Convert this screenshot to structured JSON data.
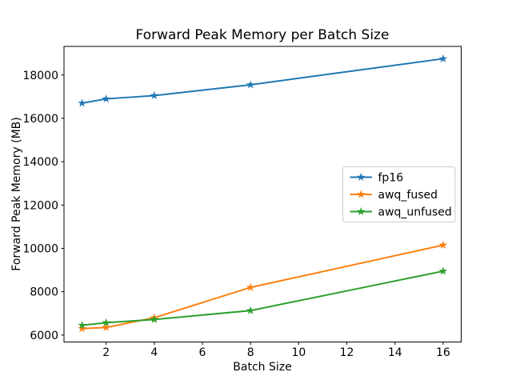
{
  "chart_data": {
    "type": "line",
    "title": "Forward Peak Memory per Batch Size",
    "xlabel": "Batch Size",
    "ylabel": "Forward Peak Memory (MB)",
    "x": [
      1,
      2,
      4,
      8,
      16
    ],
    "series": [
      {
        "name": "fp16",
        "color": "#1f77b4",
        "marker": "star",
        "values": [
          16700,
          16900,
          17050,
          17550,
          18750
        ]
      },
      {
        "name": "awq_fused",
        "color": "#ff7f0e",
        "marker": "star",
        "values": [
          6300,
          6350,
          6800,
          8200,
          10150
        ]
      },
      {
        "name": "awq_unfused",
        "color": "#2ca02c",
        "marker": "star",
        "values": [
          6450,
          6570,
          6720,
          7130,
          8950
        ]
      }
    ],
    "xlim": [
      0.25,
      16.75
    ],
    "ylim": [
      5680,
      19320
    ],
    "xticks": [
      2,
      4,
      6,
      8,
      10,
      12,
      14,
      16
    ],
    "yticks": [
      6000,
      8000,
      10000,
      12000,
      14000,
      16000,
      18000
    ],
    "grid": false,
    "legend": {
      "position": "center-right",
      "entries": [
        "fp16",
        "awq_fused",
        "awq_unfused"
      ],
      "background": "#ffffff",
      "border_color": "#cccccc"
    },
    "axis_color": "#000000",
    "background_color": "#ffffff"
  }
}
